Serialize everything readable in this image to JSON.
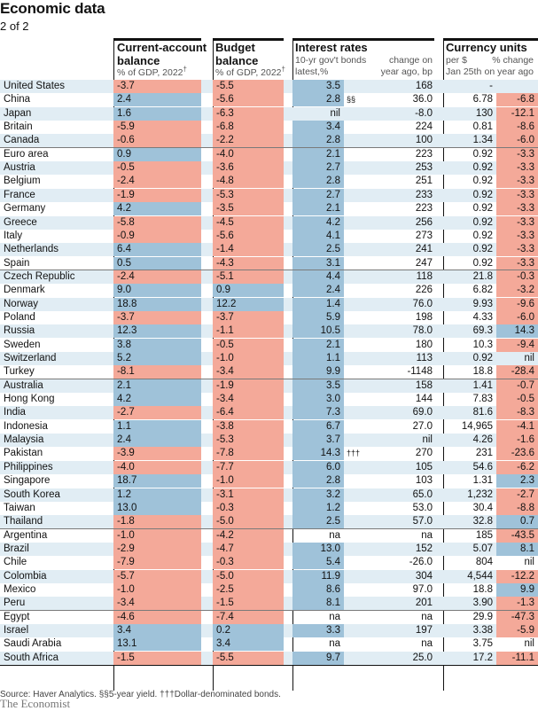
{
  "title": "Economic data",
  "subtitle": "2 of 2",
  "columns": {
    "current_account": {
      "line1": "Current-account",
      "line2": "balance",
      "sub": "% of GDP, 2022",
      "sub_mark": "†"
    },
    "budget": {
      "line1": "Budget",
      "line2": "balance",
      "sub": "% of GDP, 2022",
      "sub_mark": "†"
    },
    "interest": {
      "title": "Interest rates",
      "sub1_a": "10-yr gov't bonds",
      "sub1_b": "latest,%",
      "sub2_a": "change on",
      "sub2_b": "year ago, bp"
    },
    "currency": {
      "title": "Currency units",
      "sub1_a": "per $",
      "sub1_b": "Jan 25th",
      "sub2_a": "% change",
      "sub2_b": "on year ago"
    }
  },
  "rows": [
    {
      "country": "United States",
      "ca": "-3.7",
      "budget": "-5.5",
      "ir": "3.5",
      "ir_note": "",
      "ir_chg": "168",
      "cur": "-",
      "cur_chg": ""
    },
    {
      "country": "China",
      "ca": "2.4",
      "budget": "-5.6",
      "ir": "2.8",
      "ir_note": "§§",
      "ir_chg": "36.0",
      "cur": "6.78",
      "cur_chg": "-6.8"
    },
    {
      "country": "Japan",
      "ca": "1.6",
      "budget": "-6.3",
      "ir": "nil",
      "ir_note": "",
      "ir_chg": "-8.0",
      "cur": "130",
      "cur_chg": "-12.1"
    },
    {
      "country": "Britain",
      "ca": "-5.9",
      "budget": "-6.8",
      "ir": "3.4",
      "ir_note": "",
      "ir_chg": "224",
      "cur": "0.81",
      "cur_chg": "-8.6"
    },
    {
      "country": "Canada",
      "ca": "-0.6",
      "budget": "-2.2",
      "ir": "2.8",
      "ir_note": "",
      "ir_chg": "100",
      "cur": "1.34",
      "cur_chg": "-6.0"
    },
    {
      "country": "Euro area",
      "ca": "0.9",
      "budget": "-4.0",
      "ir": "2.1",
      "ir_note": "",
      "ir_chg": "223",
      "cur": "0.92",
      "cur_chg": "-3.3"
    },
    {
      "country": "Austria",
      "ca": "-0.5",
      "budget": "-3.6",
      "ir": "2.7",
      "ir_note": "",
      "ir_chg": "253",
      "cur": "0.92",
      "cur_chg": "-3.3"
    },
    {
      "country": "Belgium",
      "ca": "-2.4",
      "budget": "-4.8",
      "ir": "2.8",
      "ir_note": "",
      "ir_chg": "251",
      "cur": "0.92",
      "cur_chg": "-3.3"
    },
    {
      "country": "France",
      "ca": "-1.9",
      "budget": "-5.3",
      "ir": "2.7",
      "ir_note": "",
      "ir_chg": "233",
      "cur": "0.92",
      "cur_chg": "-3.3"
    },
    {
      "country": "Germany",
      "ca": "4.2",
      "budget": "-3.5",
      "ir": "2.1",
      "ir_note": "",
      "ir_chg": "223",
      "cur": "0.92",
      "cur_chg": "-3.3"
    },
    {
      "country": "Greece",
      "ca": "-5.8",
      "budget": "-4.5",
      "ir": "4.2",
      "ir_note": "",
      "ir_chg": "256",
      "cur": "0.92",
      "cur_chg": "-3.3"
    },
    {
      "country": "Italy",
      "ca": "-0.9",
      "budget": "-5.6",
      "ir": "4.1",
      "ir_note": "",
      "ir_chg": "273",
      "cur": "0.92",
      "cur_chg": "-3.3"
    },
    {
      "country": "Netherlands",
      "ca": "6.4",
      "budget": "-1.4",
      "ir": "2.5",
      "ir_note": "",
      "ir_chg": "241",
      "cur": "0.92",
      "cur_chg": "-3.3"
    },
    {
      "country": "Spain",
      "ca": "0.5",
      "budget": "-4.3",
      "ir": "3.1",
      "ir_note": "",
      "ir_chg": "247",
      "cur": "0.92",
      "cur_chg": "-3.3"
    },
    {
      "country": "Czech Republic",
      "ca": "-2.4",
      "budget": "-5.1",
      "ir": "4.4",
      "ir_note": "",
      "ir_chg": "118",
      "cur": "21.8",
      "cur_chg": "-0.3"
    },
    {
      "country": "Denmark",
      "ca": "9.0",
      "budget": "0.9",
      "ir": "2.4",
      "ir_note": "",
      "ir_chg": "226",
      "cur": "6.82",
      "cur_chg": "-3.2"
    },
    {
      "country": "Norway",
      "ca": "18.8",
      "budget": "12.2",
      "ir": "1.4",
      "ir_note": "",
      "ir_chg": "76.0",
      "cur": "9.93",
      "cur_chg": "-9.6"
    },
    {
      "country": "Poland",
      "ca": "-3.7",
      "budget": "-3.7",
      "ir": "5.9",
      "ir_note": "",
      "ir_chg": "198",
      "cur": "4.33",
      "cur_chg": "-6.0"
    },
    {
      "country": "Russia",
      "ca": "12.3",
      "budget": "-1.1",
      "ir": "10.5",
      "ir_note": "",
      "ir_chg": "78.0",
      "cur": "69.3",
      "cur_chg": "14.3"
    },
    {
      "country": "Sweden",
      "ca": "3.8",
      "budget": "-0.5",
      "ir": "2.1",
      "ir_note": "",
      "ir_chg": "180",
      "cur": "10.3",
      "cur_chg": "-9.4"
    },
    {
      "country": "Switzerland",
      "ca": "5.2",
      "budget": "-1.0",
      "ir": "1.1",
      "ir_note": "",
      "ir_chg": "113",
      "cur": "0.92",
      "cur_chg": "nil"
    },
    {
      "country": "Turkey",
      "ca": "-8.1",
      "budget": "-3.4",
      "ir": "9.9",
      "ir_note": "",
      "ir_chg": "-1148",
      "cur": "18.8",
      "cur_chg": "-28.4"
    },
    {
      "country": "Australia",
      "ca": "2.1",
      "budget": "-1.9",
      "ir": "3.5",
      "ir_note": "",
      "ir_chg": "158",
      "cur": "1.41",
      "cur_chg": "-0.7"
    },
    {
      "country": "Hong Kong",
      "ca": "4.2",
      "budget": "-3.4",
      "ir": "3.0",
      "ir_note": "",
      "ir_chg": "144",
      "cur": "7.83",
      "cur_chg": "-0.5"
    },
    {
      "country": "India",
      "ca": "-2.7",
      "budget": "-6.4",
      "ir": "7.3",
      "ir_note": "",
      "ir_chg": "69.0",
      "cur": "81.6",
      "cur_chg": "-8.3"
    },
    {
      "country": "Indonesia",
      "ca": "1.1",
      "budget": "-3.8",
      "ir": "6.7",
      "ir_note": "",
      "ir_chg": "27.0",
      "cur": "14,965",
      "cur_chg": "-4.1"
    },
    {
      "country": "Malaysia",
      "ca": "2.4",
      "budget": "-5.3",
      "ir": "3.7",
      "ir_note": "",
      "ir_chg": "nil",
      "cur": "4.26",
      "cur_chg": "-1.6"
    },
    {
      "country": "Pakistan",
      "ca": "-3.9",
      "budget": "-7.8",
      "ir": "14.3",
      "ir_note": "†††",
      "ir_chg": "270",
      "cur": "231",
      "cur_chg": "-23.6"
    },
    {
      "country": "Philippines",
      "ca": "-4.0",
      "budget": "-7.7",
      "ir": "6.0",
      "ir_note": "",
      "ir_chg": "105",
      "cur": "54.6",
      "cur_chg": "-6.2"
    },
    {
      "country": "Singapore",
      "ca": "18.7",
      "budget": "-1.0",
      "ir": "2.8",
      "ir_note": "",
      "ir_chg": "103",
      "cur": "1.31",
      "cur_chg": "2.3"
    },
    {
      "country": "South Korea",
      "ca": "1.2",
      "budget": "-3.1",
      "ir": "3.2",
      "ir_note": "",
      "ir_chg": "65.0",
      "cur": "1,232",
      "cur_chg": "-2.7"
    },
    {
      "country": "Taiwan",
      "ca": "13.0",
      "budget": "-0.3",
      "ir": "1.2",
      "ir_note": "",
      "ir_chg": "53.0",
      "cur": "30.4",
      "cur_chg": "-8.8"
    },
    {
      "country": "Thailand",
      "ca": "-1.8",
      "budget": "-5.0",
      "ir": "2.5",
      "ir_note": "",
      "ir_chg": "57.0",
      "cur": "32.8",
      "cur_chg": "0.7"
    },
    {
      "country": "Argentina",
      "ca": "-1.0",
      "budget": "-4.2",
      "ir": "na",
      "ir_note": "",
      "ir_chg": "na",
      "cur": "185",
      "cur_chg": "-43.5"
    },
    {
      "country": "Brazil",
      "ca": "-2.9",
      "budget": "-4.7",
      "ir": "13.0",
      "ir_note": "",
      "ir_chg": "152",
      "cur": "5.07",
      "cur_chg": "8.1"
    },
    {
      "country": "Chile",
      "ca": "-7.9",
      "budget": "-0.3",
      "ir": "5.4",
      "ir_note": "",
      "ir_chg": "-26.0",
      "cur": "804",
      "cur_chg": "nil"
    },
    {
      "country": "Colombia",
      "ca": "-5.7",
      "budget": "-5.0",
      "ir": "11.9",
      "ir_note": "",
      "ir_chg": "304",
      "cur": "4,544",
      "cur_chg": "-12.2"
    },
    {
      "country": "Mexico",
      "ca": "-1.0",
      "budget": "-2.5",
      "ir": "8.6",
      "ir_note": "",
      "ir_chg": "97.0",
      "cur": "18.8",
      "cur_chg": "9.9"
    },
    {
      "country": "Peru",
      "ca": "-3.4",
      "budget": "-1.5",
      "ir": "8.1",
      "ir_note": "",
      "ir_chg": "201",
      "cur": "3.90",
      "cur_chg": "-1.3"
    },
    {
      "country": "Egypt",
      "ca": "-4.6",
      "budget": "-7.4",
      "ir": "na",
      "ir_note": "",
      "ir_chg": "na",
      "cur": "29.9",
      "cur_chg": "-47.3"
    },
    {
      "country": "Israel",
      "ca": "3.4",
      "budget": "0.2",
      "ir": "3.3",
      "ir_note": "",
      "ir_chg": "197",
      "cur": "3.38",
      "cur_chg": "-5.9"
    },
    {
      "country": "Saudi Arabia",
      "ca": "13.1",
      "budget": "3.4",
      "ir": "na",
      "ir_note": "",
      "ir_chg": "na",
      "cur": "3.75",
      "cur_chg": "nil"
    },
    {
      "country": "South Africa",
      "ca": "-1.5",
      "budget": "-5.5",
      "ir": "9.7",
      "ir_note": "",
      "ir_chg": "25.0",
      "cur": "17.2",
      "cur_chg": "-11.1"
    }
  ],
  "footnote": "Source: Haver Analytics.  §§5-year yield. †††Dollar-denominated bonds.",
  "brand": "The Economist",
  "colors": {
    "positive": "#9fc2d9",
    "negative": "#f4a999",
    "stripe": "#e1edf4",
    "ink": "#121212"
  }
}
